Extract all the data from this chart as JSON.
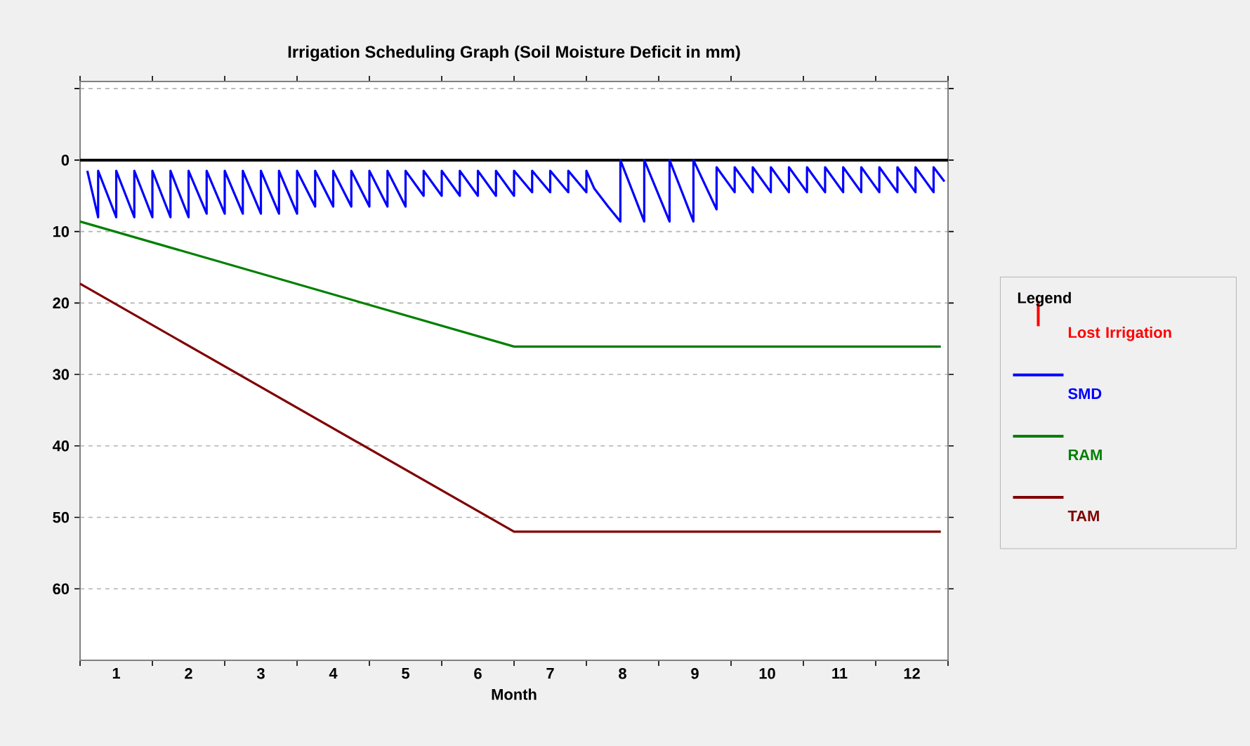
{
  "chart_data": {
    "type": "line",
    "title": "Irrigation Scheduling Graph (Soil Moisture Deficit in mm)",
    "xlabel": "Month",
    "legend_title": "Legend",
    "legend": "right",
    "grid": "y",
    "xlim": [
      0,
      12
    ],
    "ylim": [
      70,
      -11
    ],
    "xticks": [
      {
        "value": 0,
        "label": null
      },
      {
        "value": 0.5,
        "label": "1"
      },
      {
        "value": 1,
        "label": null
      },
      {
        "value": 1.5,
        "label": "2"
      },
      {
        "value": 2,
        "label": null
      },
      {
        "value": 2.5,
        "label": "3"
      },
      {
        "value": 3,
        "label": null
      },
      {
        "value": 3.5,
        "label": "4"
      },
      {
        "value": 4,
        "label": null
      },
      {
        "value": 4.5,
        "label": "5"
      },
      {
        "value": 5,
        "label": null
      },
      {
        "value": 5.5,
        "label": "6"
      },
      {
        "value": 6,
        "label": null
      },
      {
        "value": 6.5,
        "label": "7"
      },
      {
        "value": 7,
        "label": null
      },
      {
        "value": 7.5,
        "label": "8"
      },
      {
        "value": 8,
        "label": null
      },
      {
        "value": 8.5,
        "label": "9"
      },
      {
        "value": 9,
        "label": null
      },
      {
        "value": 9.5,
        "label": "10"
      },
      {
        "value": 10,
        "label": null
      },
      {
        "value": 10.5,
        "label": "11"
      },
      {
        "value": 11,
        "label": null
      },
      {
        "value": 11.5,
        "label": "12"
      },
      {
        "value": 12,
        "label": null
      }
    ],
    "yticks": [
      {
        "value": -10,
        "label": null
      },
      0,
      10,
      20,
      30,
      40,
      50,
      60
    ],
    "ref_lines": [
      {
        "axis": "y",
        "value": 0,
        "color": "#000000"
      }
    ],
    "series": [
      {
        "name": "Lost Irrigation",
        "type": "bar",
        "color": "#ff0000"
      },
      {
        "name": "SMD",
        "color": "#0000ff",
        "x": [
          0.1,
          0.25,
          0.25,
          0.5,
          0.5,
          0.75,
          0.75,
          1.0,
          1.0,
          1.25,
          1.25,
          1.5,
          1.5,
          1.75,
          1.75,
          2.0,
          2.0,
          2.25,
          2.25,
          2.5,
          2.5,
          2.75,
          2.75,
          3.0,
          3.0,
          3.25,
          3.25,
          3.5,
          3.5,
          3.75,
          3.75,
          4.0,
          4.0,
          4.25,
          4.25,
          4.5,
          4.5,
          4.75,
          4.75,
          5.0,
          5.0,
          5.25,
          5.25,
          5.5,
          5.5,
          5.75,
          5.75,
          6.0,
          6.0,
          6.25,
          6.25,
          6.5,
          6.5,
          6.75,
          6.75,
          7.0,
          7.0,
          7.11,
          7.3,
          7.47,
          7.47,
          7.8,
          7.8,
          8.15,
          8.15,
          8.48,
          8.48,
          8.8,
          8.8,
          9.05,
          9.05,
          9.3,
          9.3,
          9.55,
          9.55,
          9.8,
          9.8,
          10.05,
          10.05,
          10.3,
          10.3,
          10.55,
          10.55,
          10.8,
          10.8,
          11.05,
          11.05,
          11.3,
          11.3,
          11.55,
          11.55,
          11.8,
          11.8,
          11.95
        ],
        "values": [
          1.5,
          8,
          1.5,
          8,
          1.5,
          8,
          1.5,
          8,
          1.5,
          8,
          1.5,
          8,
          1.5,
          7.5,
          1.5,
          7.5,
          1.5,
          7.5,
          1.5,
          7.5,
          1.5,
          7.5,
          1.5,
          7.5,
          1.5,
          6.5,
          1.5,
          6.5,
          1.5,
          6.5,
          1.5,
          6.5,
          1.5,
          6.5,
          1.5,
          6.5,
          1.5,
          5,
          1.5,
          5,
          1.5,
          5,
          1.5,
          5,
          1.5,
          5,
          1.5,
          5,
          1.5,
          4.5,
          1.5,
          4.5,
          1.5,
          4.5,
          1.5,
          4.5,
          1.5,
          4,
          6.5,
          8.6,
          0,
          8.6,
          0,
          8.6,
          0,
          8.6,
          0,
          6.9,
          1,
          4.5,
          1,
          4.5,
          1,
          4.5,
          1,
          4.5,
          1,
          4.5,
          1,
          4.5,
          1,
          4.5,
          1,
          4.5,
          1,
          4.5,
          1,
          4.5,
          1,
          4.5,
          1,
          4.5,
          1,
          3
        ]
      },
      {
        "name": "RAM",
        "color": "#008000",
        "x": [
          0,
          6,
          11.9
        ],
        "values": [
          8.6,
          26.1,
          26.1
        ]
      },
      {
        "name": "TAM",
        "color": "#800000",
        "x": [
          0,
          6,
          11.9
        ],
        "values": [
          17.3,
          52,
          52
        ]
      }
    ]
  }
}
